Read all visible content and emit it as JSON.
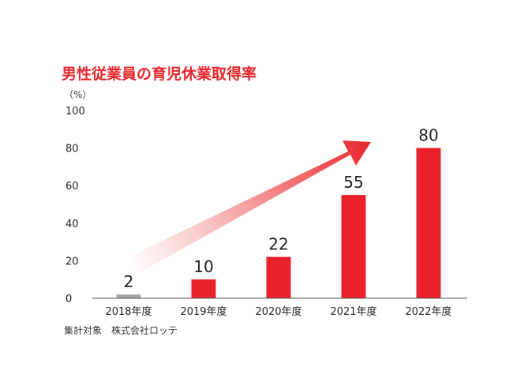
{
  "chart_data": {
    "type": "bar",
    "title": "男性従業員の育児休業取得率",
    "ylabel": "（%）",
    "categories": [
      "2018年度",
      "2019年度",
      "2020年度",
      "2021年度",
      "2022年度"
    ],
    "values": [
      2,
      10,
      22,
      55,
      80
    ],
    "ylim": [
      0,
      100
    ],
    "yticks": [
      0,
      20,
      40,
      60,
      80,
      100
    ],
    "grid": false,
    "data_labels": true,
    "footnote": "集計対象　株式会社ロッテ",
    "annotation": "increasing-trend-arrow",
    "colors": {
      "title": "#e8262b",
      "bar": "#e8212a",
      "bar_first": "#a8a8a8",
      "axis": "#555555",
      "arrow": "#e8262b"
    }
  }
}
